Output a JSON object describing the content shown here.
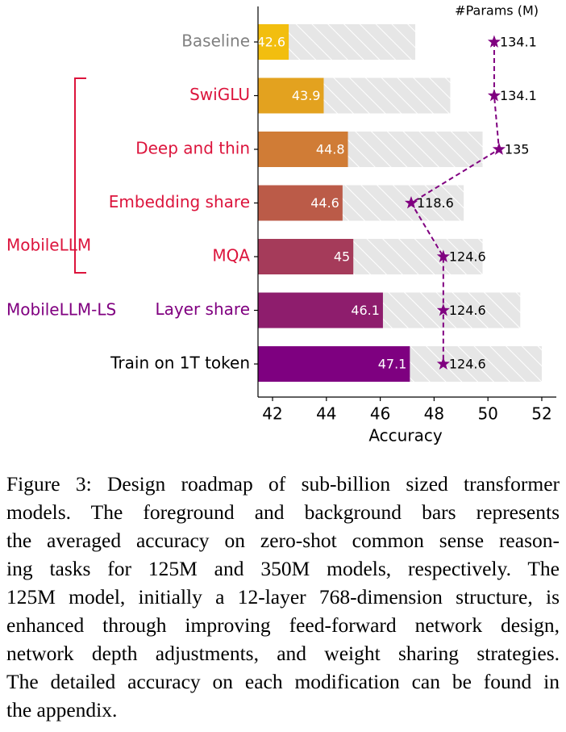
{
  "chart_data": {
    "type": "bar",
    "orientation": "horizontal",
    "categories": [
      "Baseline",
      "SwiGLU",
      "Deep and thin",
      "Embedding share",
      "MQA",
      "Layer share",
      "Train on 1T token"
    ],
    "category_colors": [
      "#808080",
      "#dc143c",
      "#dc143c",
      "#dc143c",
      "#dc143c",
      "#800080",
      "#000000"
    ],
    "foreground": {
      "values": [
        42.6,
        43.9,
        44.8,
        44.6,
        45.0,
        46.1,
        47.1
      ],
      "colors": [
        "#f2be0f",
        "#e3a21f",
        "#d07c36",
        "#bb5b48",
        "#a53b5a",
        "#8e1d6d",
        "#7e0080"
      ]
    },
    "background": {
      "values": [
        47.3,
        48.6,
        49.8,
        49.1,
        49.8,
        51.2,
        52.0
      ],
      "color": "#e6e6e6"
    },
    "params": {
      "name": "#Params (M)",
      "values": [
        134.1,
        134.1,
        135.0,
        118.6,
        124.6,
        124.6,
        124.6
      ],
      "color": "#800080",
      "axis": "x2"
    },
    "groups": [
      {
        "label": "MobileLLM",
        "color": "#dc143c"
      },
      {
        "label": "MobileLLM-LS",
        "color": "#800080"
      }
    ],
    "xlabel": "Accuracy",
    "xlim": [
      41.46,
      52.54
    ],
    "xticks": [
      42,
      44,
      46,
      48,
      50,
      52
    ],
    "x2lim": [
      90,
      145.7
    ]
  },
  "caption": [
    "Figure 3: Design roadmap of sub-billion sized transformer",
    "models. The foreground and background bars represents",
    "the averaged accuracy on zero-shot common sense reason-",
    "ing tasks for 125M and 350M models, respectively. The",
    "125M model, initially a 12-layer 768-dimension structure, is",
    "enhanced through improving feed-forward network design,",
    "network depth adjustments, and weight sharing strategies.",
    "The detailed accuracy on each modification can be found in",
    "the appendix."
  ]
}
